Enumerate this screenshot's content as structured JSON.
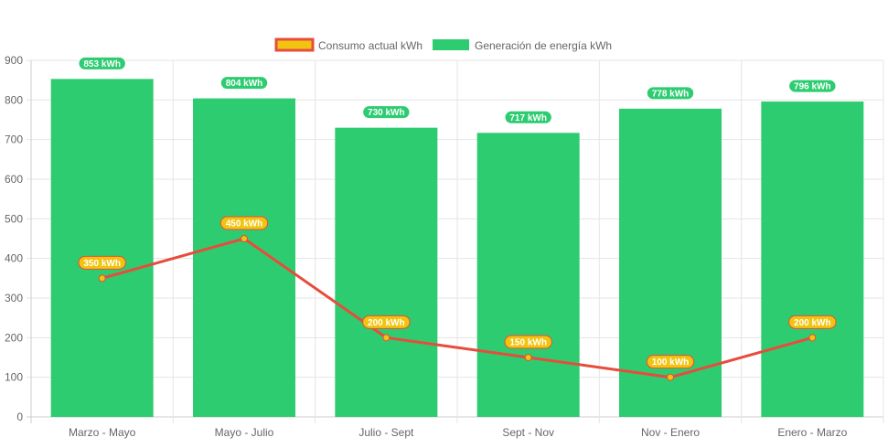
{
  "chart_data": {
    "type": "bar",
    "categories": [
      "Marzo - Mayo",
      "Mayo - Julio",
      "Julio - Sept",
      "Sept - Nov",
      "Nov - Enero",
      "Enero - Marzo"
    ],
    "series": [
      {
        "name": "Consumo actual kWh",
        "type": "line",
        "values": [
          350,
          450,
          200,
          150,
          100,
          200
        ],
        "labels": [
          "350 kWh",
          "450 kWh",
          "200 kWh",
          "150 kWh",
          "100 kWh",
          "200 kWh"
        ],
        "color": "#e74c3c",
        "fill": "#f1c40f"
      },
      {
        "name": "Generación de energía kWh",
        "type": "bar",
        "values": [
          853,
          804,
          730,
          717,
          778,
          796
        ],
        "labels": [
          "853 kWh",
          "804 kWh",
          "730 kWh",
          "717 kWh",
          "778 kWh",
          "796 kWh"
        ],
        "color": "#2ecc71"
      }
    ],
    "yticks": [
      "0",
      "100",
      "200",
      "300",
      "400",
      "500",
      "600",
      "700",
      "800",
      "900"
    ],
    "ylim": [
      0,
      900
    ],
    "grid": true,
    "legend": "top-center",
    "title": "",
    "xlabel": "",
    "ylabel": ""
  }
}
